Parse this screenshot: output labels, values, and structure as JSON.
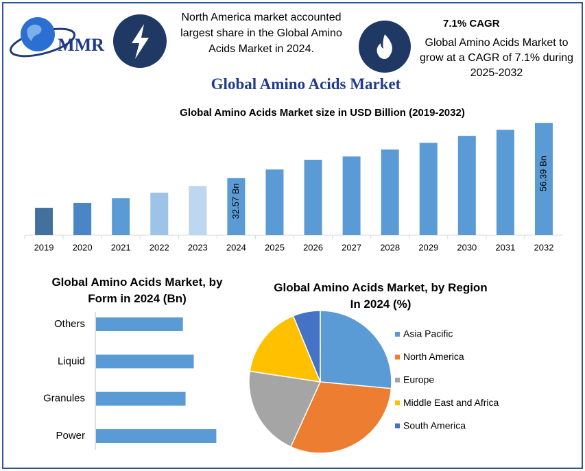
{
  "header": {
    "logo": "MMR",
    "fact1": "North America market accounted largest share in the Global Amino Acids Market in 2024.",
    "fact2_title": "7.1% CAGR",
    "fact2": "Global Amino Acids Market to grow at a CAGR of 7.1% during 2025-2032",
    "title": "Global Amino Acids Market"
  },
  "chart_data": [
    {
      "type": "bar",
      "title": "Global Amino Acids Market size in USD Billion (2019-2032)",
      "categories": [
        "2019",
        "2020",
        "2021",
        "2022",
        "2023",
        "2024",
        "2025",
        "2026",
        "2027",
        "2028",
        "2029",
        "2030",
        "2031",
        "2032"
      ],
      "values": [
        19.8,
        21.9,
        23.9,
        26.3,
        29.2,
        32.57,
        36.3,
        40.5,
        41.9,
        44.9,
        47.8,
        50.8,
        53.4,
        56.39
      ],
      "value_labels": [
        null,
        null,
        null,
        null,
        null,
        "32.57 Bn",
        null,
        null,
        null,
        null,
        null,
        null,
        null,
        "56.39 Bn"
      ],
      "colors": [
        "#41719c",
        "#4a86c5",
        "#5b9bd5",
        "#9dc3e6",
        "#bdd7ee",
        "#5b9bd5",
        "#5b9bd5",
        "#5b9bd5",
        "#5b9bd5",
        "#5b9bd5",
        "#5b9bd5",
        "#5b9bd5",
        "#5b9bd5",
        "#5b9bd5"
      ],
      "ylim": [
        8,
        60
      ]
    },
    {
      "type": "bar",
      "horizontal": true,
      "title": "Global Amino Acids Market, by Form in 2024 (Bn)",
      "categories": [
        "Others",
        "Liquid",
        "Granules",
        "Power"
      ],
      "values": [
        7.17,
        8.07,
        7.39,
        9.93
      ],
      "color": "#5b9bd5",
      "xlim": [
        0,
        12
      ]
    },
    {
      "type": "pie",
      "title": "Global Amino Acids Market, by Region In 2024 (%)",
      "categories": [
        "Asia Pacific",
        "North America",
        "Europe",
        "Middle East and Africa",
        "South America"
      ],
      "values": [
        26.5,
        30.3,
        20.6,
        16.4,
        6.2
      ],
      "colors": [
        "#5b9bd5",
        "#ed7d31",
        "#a5a5a5",
        "#ffc000",
        "#4472c4"
      ],
      "legend": "right"
    }
  ]
}
